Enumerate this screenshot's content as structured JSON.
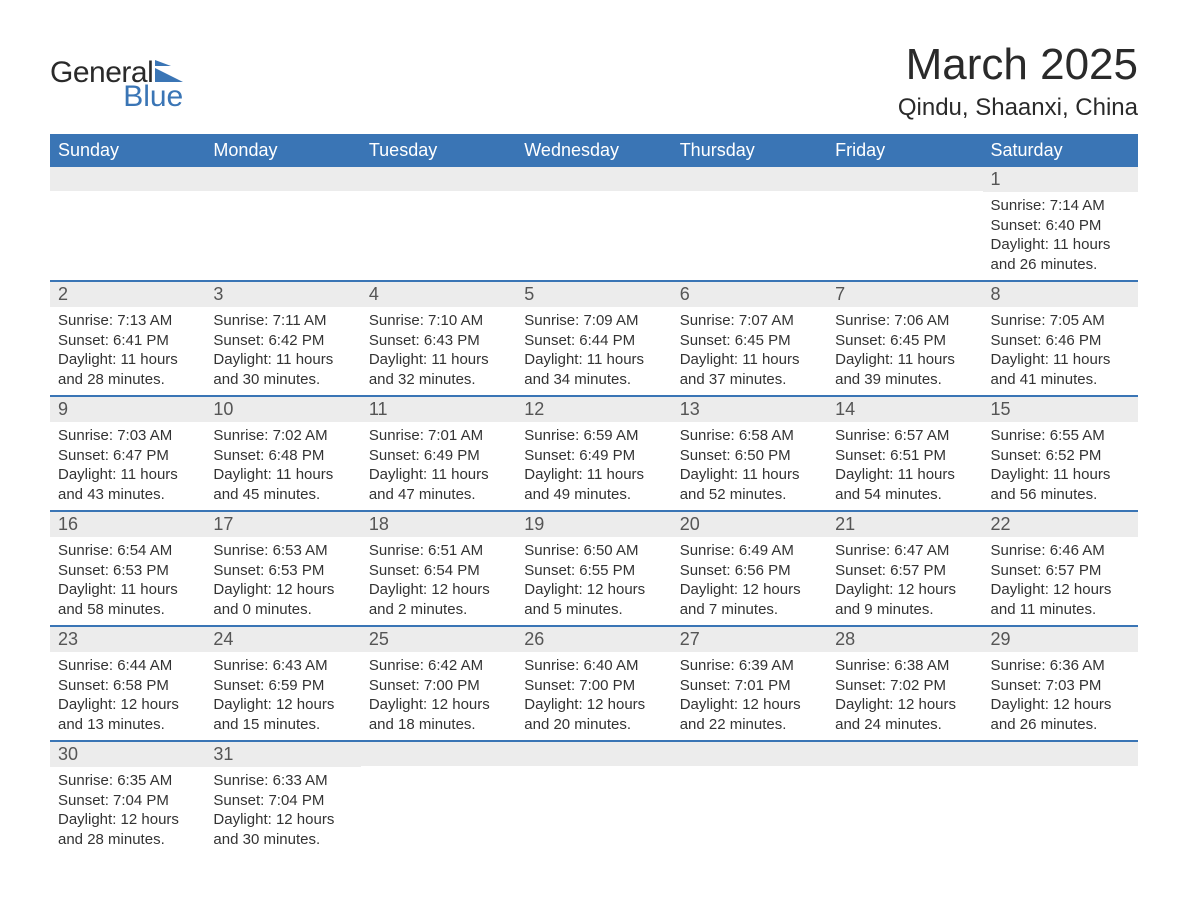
{
  "brand": {
    "name_top": "General",
    "name_bottom": "Blue",
    "flag_color": "#3a75b5",
    "text_color_top": "#2a2a2a",
    "text_color_bottom": "#3a75b5"
  },
  "title": {
    "month": "March 2025",
    "location": "Qindu, Shaanxi, China",
    "month_fontsize": 44,
    "location_fontsize": 24,
    "text_color": "#2a2a2a"
  },
  "colors": {
    "header_bg": "#3a75b5",
    "header_text": "#ffffff",
    "daynum_bg": "#ececec",
    "daynum_text": "#555555",
    "body_text": "#333333",
    "row_divider": "#3a75b5",
    "page_bg": "#ffffff"
  },
  "typography": {
    "header_fontsize": 18,
    "daynum_fontsize": 18,
    "daydata_fontsize": 15,
    "font_family": "Arial"
  },
  "day_names": [
    "Sunday",
    "Monday",
    "Tuesday",
    "Wednesday",
    "Thursday",
    "Friday",
    "Saturday"
  ],
  "weeks": [
    [
      null,
      null,
      null,
      null,
      null,
      null,
      {
        "n": "1",
        "sunrise": "Sunrise: 7:14 AM",
        "sunset": "Sunset: 6:40 PM",
        "dl1": "Daylight: 11 hours",
        "dl2": "and 26 minutes."
      }
    ],
    [
      {
        "n": "2",
        "sunrise": "Sunrise: 7:13 AM",
        "sunset": "Sunset: 6:41 PM",
        "dl1": "Daylight: 11 hours",
        "dl2": "and 28 minutes."
      },
      {
        "n": "3",
        "sunrise": "Sunrise: 7:11 AM",
        "sunset": "Sunset: 6:42 PM",
        "dl1": "Daylight: 11 hours",
        "dl2": "and 30 minutes."
      },
      {
        "n": "4",
        "sunrise": "Sunrise: 7:10 AM",
        "sunset": "Sunset: 6:43 PM",
        "dl1": "Daylight: 11 hours",
        "dl2": "and 32 minutes."
      },
      {
        "n": "5",
        "sunrise": "Sunrise: 7:09 AM",
        "sunset": "Sunset: 6:44 PM",
        "dl1": "Daylight: 11 hours",
        "dl2": "and 34 minutes."
      },
      {
        "n": "6",
        "sunrise": "Sunrise: 7:07 AM",
        "sunset": "Sunset: 6:45 PM",
        "dl1": "Daylight: 11 hours",
        "dl2": "and 37 minutes."
      },
      {
        "n": "7",
        "sunrise": "Sunrise: 7:06 AM",
        "sunset": "Sunset: 6:45 PM",
        "dl1": "Daylight: 11 hours",
        "dl2": "and 39 minutes."
      },
      {
        "n": "8",
        "sunrise": "Sunrise: 7:05 AM",
        "sunset": "Sunset: 6:46 PM",
        "dl1": "Daylight: 11 hours",
        "dl2": "and 41 minutes."
      }
    ],
    [
      {
        "n": "9",
        "sunrise": "Sunrise: 7:03 AM",
        "sunset": "Sunset: 6:47 PM",
        "dl1": "Daylight: 11 hours",
        "dl2": "and 43 minutes."
      },
      {
        "n": "10",
        "sunrise": "Sunrise: 7:02 AM",
        "sunset": "Sunset: 6:48 PM",
        "dl1": "Daylight: 11 hours",
        "dl2": "and 45 minutes."
      },
      {
        "n": "11",
        "sunrise": "Sunrise: 7:01 AM",
        "sunset": "Sunset: 6:49 PM",
        "dl1": "Daylight: 11 hours",
        "dl2": "and 47 minutes."
      },
      {
        "n": "12",
        "sunrise": "Sunrise: 6:59 AM",
        "sunset": "Sunset: 6:49 PM",
        "dl1": "Daylight: 11 hours",
        "dl2": "and 49 minutes."
      },
      {
        "n": "13",
        "sunrise": "Sunrise: 6:58 AM",
        "sunset": "Sunset: 6:50 PM",
        "dl1": "Daylight: 11 hours",
        "dl2": "and 52 minutes."
      },
      {
        "n": "14",
        "sunrise": "Sunrise: 6:57 AM",
        "sunset": "Sunset: 6:51 PM",
        "dl1": "Daylight: 11 hours",
        "dl2": "and 54 minutes."
      },
      {
        "n": "15",
        "sunrise": "Sunrise: 6:55 AM",
        "sunset": "Sunset: 6:52 PM",
        "dl1": "Daylight: 11 hours",
        "dl2": "and 56 minutes."
      }
    ],
    [
      {
        "n": "16",
        "sunrise": "Sunrise: 6:54 AM",
        "sunset": "Sunset: 6:53 PM",
        "dl1": "Daylight: 11 hours",
        "dl2": "and 58 minutes."
      },
      {
        "n": "17",
        "sunrise": "Sunrise: 6:53 AM",
        "sunset": "Sunset: 6:53 PM",
        "dl1": "Daylight: 12 hours",
        "dl2": "and 0 minutes."
      },
      {
        "n": "18",
        "sunrise": "Sunrise: 6:51 AM",
        "sunset": "Sunset: 6:54 PM",
        "dl1": "Daylight: 12 hours",
        "dl2": "and 2 minutes."
      },
      {
        "n": "19",
        "sunrise": "Sunrise: 6:50 AM",
        "sunset": "Sunset: 6:55 PM",
        "dl1": "Daylight: 12 hours",
        "dl2": "and 5 minutes."
      },
      {
        "n": "20",
        "sunrise": "Sunrise: 6:49 AM",
        "sunset": "Sunset: 6:56 PM",
        "dl1": "Daylight: 12 hours",
        "dl2": "and 7 minutes."
      },
      {
        "n": "21",
        "sunrise": "Sunrise: 6:47 AM",
        "sunset": "Sunset: 6:57 PM",
        "dl1": "Daylight: 12 hours",
        "dl2": "and 9 minutes."
      },
      {
        "n": "22",
        "sunrise": "Sunrise: 6:46 AM",
        "sunset": "Sunset: 6:57 PM",
        "dl1": "Daylight: 12 hours",
        "dl2": "and 11 minutes."
      }
    ],
    [
      {
        "n": "23",
        "sunrise": "Sunrise: 6:44 AM",
        "sunset": "Sunset: 6:58 PM",
        "dl1": "Daylight: 12 hours",
        "dl2": "and 13 minutes."
      },
      {
        "n": "24",
        "sunrise": "Sunrise: 6:43 AM",
        "sunset": "Sunset: 6:59 PM",
        "dl1": "Daylight: 12 hours",
        "dl2": "and 15 minutes."
      },
      {
        "n": "25",
        "sunrise": "Sunrise: 6:42 AM",
        "sunset": "Sunset: 7:00 PM",
        "dl1": "Daylight: 12 hours",
        "dl2": "and 18 minutes."
      },
      {
        "n": "26",
        "sunrise": "Sunrise: 6:40 AM",
        "sunset": "Sunset: 7:00 PM",
        "dl1": "Daylight: 12 hours",
        "dl2": "and 20 minutes."
      },
      {
        "n": "27",
        "sunrise": "Sunrise: 6:39 AM",
        "sunset": "Sunset: 7:01 PM",
        "dl1": "Daylight: 12 hours",
        "dl2": "and 22 minutes."
      },
      {
        "n": "28",
        "sunrise": "Sunrise: 6:38 AM",
        "sunset": "Sunset: 7:02 PM",
        "dl1": "Daylight: 12 hours",
        "dl2": "and 24 minutes."
      },
      {
        "n": "29",
        "sunrise": "Sunrise: 6:36 AM",
        "sunset": "Sunset: 7:03 PM",
        "dl1": "Daylight: 12 hours",
        "dl2": "and 26 minutes."
      }
    ],
    [
      {
        "n": "30",
        "sunrise": "Sunrise: 6:35 AM",
        "sunset": "Sunset: 7:04 PM",
        "dl1": "Daylight: 12 hours",
        "dl2": "and 28 minutes."
      },
      {
        "n": "31",
        "sunrise": "Sunrise: 6:33 AM",
        "sunset": "Sunset: 7:04 PM",
        "dl1": "Daylight: 12 hours",
        "dl2": "and 30 minutes."
      },
      null,
      null,
      null,
      null,
      null
    ]
  ]
}
